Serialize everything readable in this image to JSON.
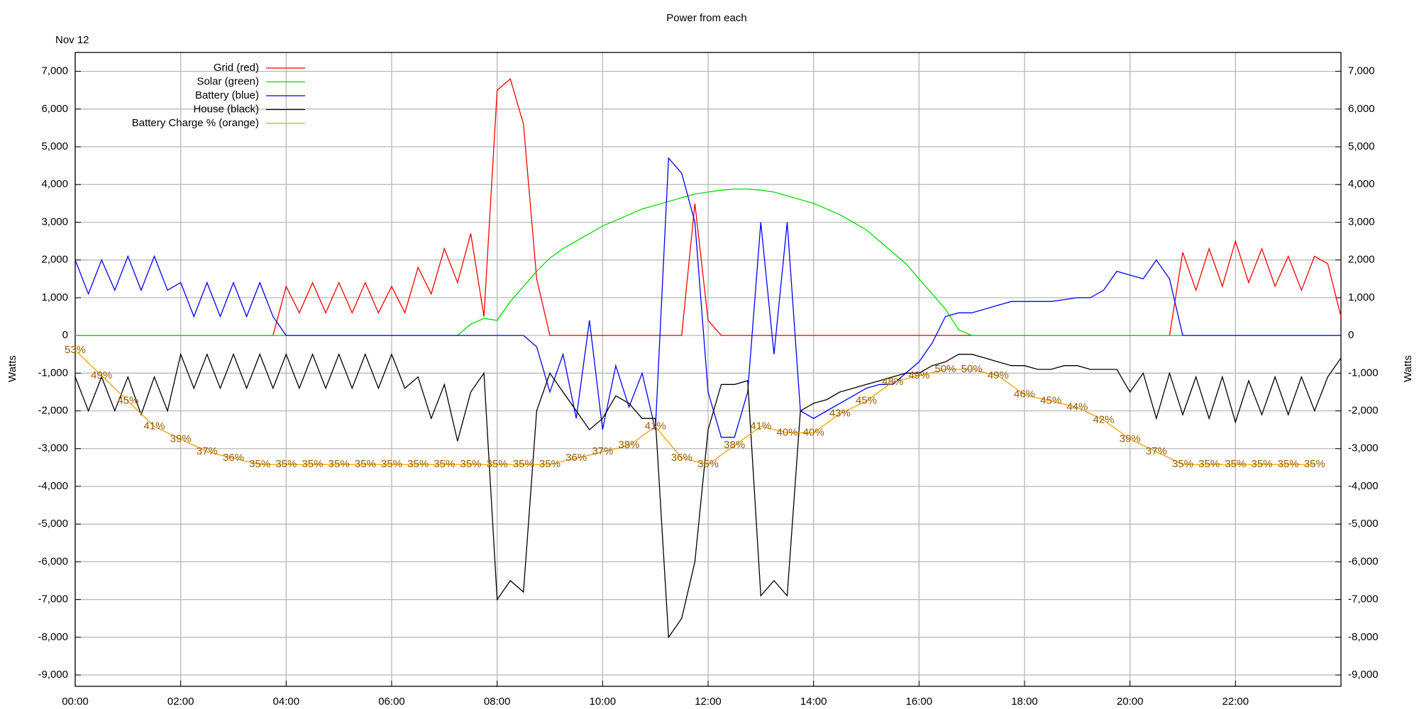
{
  "chart_data": {
    "type": "line",
    "title": "Power from each",
    "subtitle": "Nov 12",
    "ylabel": "Watts",
    "y2label": "Watts",
    "x": [
      0,
      0.25,
      0.5,
      0.75,
      1,
      1.25,
      1.5,
      1.75,
      2,
      2.25,
      2.5,
      2.75,
      3,
      3.25,
      3.5,
      3.75,
      4,
      4.25,
      4.5,
      4.75,
      5,
      5.25,
      5.5,
      5.75,
      6,
      6.25,
      6.5,
      6.75,
      7,
      7.25,
      7.5,
      7.75,
      8,
      8.25,
      8.5,
      8.75,
      9,
      9.25,
      9.5,
      9.75,
      10,
      10.25,
      10.5,
      10.75,
      11,
      11.25,
      11.5,
      11.75,
      12,
      12.25,
      12.5,
      12.75,
      13,
      13.25,
      13.5,
      13.75,
      14,
      14.25,
      14.5,
      14.75,
      15,
      15.25,
      15.5,
      15.75,
      16,
      16.25,
      16.5,
      16.75,
      17,
      17.25,
      17.5,
      17.75,
      18,
      18.25,
      18.5,
      18.75,
      19,
      19.25,
      19.5,
      19.75,
      20,
      20.25,
      20.5,
      20.75,
      21,
      21.25,
      21.5,
      21.75,
      22,
      22.25,
      22.5,
      22.75,
      23,
      23.25,
      23.5,
      23.75,
      24
    ],
    "xlim": [
      0,
      24
    ],
    "xticks": [
      {
        "value": 0,
        "label": "00:00"
      },
      {
        "value": 2,
        "label": "02:00"
      },
      {
        "value": 4,
        "label": "04:00"
      },
      {
        "value": 6,
        "label": "06:00"
      },
      {
        "value": 8,
        "label": "08:00"
      },
      {
        "value": 10,
        "label": "10:00"
      },
      {
        "value": 12,
        "label": "12:00"
      },
      {
        "value": 14,
        "label": "14:00"
      },
      {
        "value": 16,
        "label": "16:00"
      },
      {
        "value": 18,
        "label": "18:00"
      },
      {
        "value": 20,
        "label": "20:00"
      },
      {
        "value": 22,
        "label": "22:00"
      }
    ],
    "ylim": [
      -9300,
      7500
    ],
    "yticks": [
      {
        "value": 7000,
        "label": "7,000"
      },
      {
        "value": 6000,
        "label": "6,000"
      },
      {
        "value": 5000,
        "label": "5,000"
      },
      {
        "value": 4000,
        "label": "4,000"
      },
      {
        "value": 3000,
        "label": "3,000"
      },
      {
        "value": 2000,
        "label": "2,000"
      },
      {
        "value": 1000,
        "label": "1,000"
      },
      0,
      {
        "value": -1000,
        "label": "-1,000"
      },
      {
        "value": -2000,
        "label": "-2,000"
      },
      {
        "value": -3000,
        "label": "-3,000"
      },
      {
        "value": -4000,
        "label": "-4,000"
      },
      {
        "value": -5000,
        "label": "-5,000"
      },
      {
        "value": -6000,
        "label": "-6,000"
      },
      {
        "value": -7000,
        "label": "-7,000"
      },
      {
        "value": -8000,
        "label": "-8,000"
      },
      {
        "value": -9000,
        "label": "-9,000"
      }
    ],
    "y3lim": [
      0,
      100
    ],
    "grid": true,
    "legend": "upper left",
    "series": [
      {
        "name": "Grid (red)",
        "color": "#ff0000",
        "values": [
          0,
          0,
          0,
          0,
          0,
          0,
          0,
          0,
          0,
          0,
          0,
          0,
          0,
          0,
          0,
          0,
          1300,
          600,
          1400,
          600,
          1400,
          600,
          1400,
          600,
          1300,
          600,
          1800,
          1100,
          2300,
          1400,
          2700,
          500,
          6500,
          6800,
          5600,
          1500,
          0,
          0,
          0,
          0,
          0,
          0,
          0,
          0,
          0,
          0,
          0,
          3500,
          400,
          0,
          0,
          0,
          0,
          0,
          0,
          0,
          0,
          0,
          0,
          0,
          0,
          0,
          0,
          0,
          0,
          0,
          0,
          0,
          0,
          0,
          0,
          0,
          0,
          0,
          0,
          0,
          0,
          0,
          0,
          0,
          0,
          0,
          0,
          0,
          2200,
          1200,
          2300,
          1300,
          2500,
          1400,
          2300,
          1300,
          2100,
          1200,
          2100,
          1900,
          500
        ]
      },
      {
        "name": "Solar (green)",
        "color": "#00dd00",
        "values": [
          0,
          0,
          0,
          0,
          0,
          0,
          0,
          0,
          0,
          0,
          0,
          0,
          0,
          0,
          0,
          0,
          0,
          0,
          0,
          0,
          0,
          0,
          0,
          0,
          0,
          0,
          0,
          0,
          0,
          0,
          300,
          450,
          400,
          900,
          1300,
          1700,
          2050,
          2300,
          2500,
          2700,
          2900,
          3050,
          3200,
          3350,
          3450,
          3550,
          3650,
          3750,
          3800,
          3850,
          3880,
          3880,
          3850,
          3800,
          3700,
          3600,
          3500,
          3350,
          3200,
          3000,
          2800,
          2500,
          2200,
          1900,
          1500,
          1100,
          700,
          150,
          0,
          0,
          0,
          0,
          0,
          0,
          0,
          0,
          0,
          0,
          0,
          0,
          0,
          0,
          0,
          0,
          0,
          0,
          0,
          0,
          0,
          0,
          0,
          0,
          0,
          0,
          0,
          0,
          0
        ]
      },
      {
        "name": "Battery (blue)",
        "color": "#0000ff",
        "values": [
          2000,
          1100,
          2000,
          1200,
          2100,
          1200,
          2100,
          1200,
          1400,
          500,
          1400,
          500,
          1400,
          500,
          1400,
          500,
          0,
          0,
          0,
          0,
          0,
          0,
          0,
          0,
          0,
          0,
          0,
          0,
          0,
          0,
          0,
          0,
          0,
          0,
          0,
          -300,
          -1500,
          -500,
          -2200,
          400,
          -2500,
          -800,
          -1900,
          -1000,
          -2500,
          4700,
          4300,
          3000,
          -1500,
          -2700,
          -2700,
          -1500,
          3000,
          -500,
          3000,
          -2000,
          -2200,
          -2000,
          -1800,
          -1600,
          -1400,
          -1300,
          -1300,
          -1000,
          -700,
          -200,
          500,
          600,
          600,
          700,
          800,
          900,
          900,
          900,
          900,
          950,
          1000,
          1000,
          1200,
          1700,
          1600,
          1500,
          2000,
          1500,
          0,
          0,
          0,
          0,
          0,
          0,
          0,
          0,
          0,
          0,
          0,
          0,
          0
        ]
      },
      {
        "name": "House (black)",
        "color": "#000000",
        "values": [
          -1100,
          -2000,
          -1100,
          -2000,
          -1100,
          -2100,
          -1100,
          -2000,
          -500,
          -1400,
          -500,
          -1400,
          -500,
          -1400,
          -500,
          -1400,
          -500,
          -1400,
          -500,
          -1400,
          -500,
          -1400,
          -500,
          -1400,
          -500,
          -1400,
          -1100,
          -2200,
          -1300,
          -2800,
          -1500,
          -1000,
          -7000,
          -6500,
          -6800,
          -2000,
          -1000,
          -1500,
          -2000,
          -2500,
          -2200,
          -1600,
          -1800,
          -2200,
          -2200,
          -8000,
          -7500,
          -6000,
          -2500,
          -1300,
          -1300,
          -1200,
          -6900,
          -6500,
          -6900,
          -2000,
          -1800,
          -1700,
          -1500,
          -1400,
          -1300,
          -1200,
          -1100,
          -1000,
          -1000,
          -800,
          -700,
          -500,
          -500,
          -600,
          -700,
          -800,
          -800,
          -900,
          -900,
          -800,
          -800,
          -900,
          -900,
          -900,
          -1500,
          -1000,
          -2200,
          -1000,
          -2100,
          -1100,
          -2200,
          -1100,
          -2300,
          -1200,
          -2100,
          -1100,
          -2100,
          -1100,
          -2000,
          -1100,
          -600
        ]
      },
      {
        "name": "Battery Charge % (orange)",
        "color": "#f0a000",
        "label_color": "#9a5a00",
        "axis": "y3",
        "x": [
          0,
          0.5,
          1,
          1.5,
          2,
          2.5,
          3,
          3.5,
          4,
          4.5,
          5,
          5.5,
          6,
          6.5,
          7,
          7.5,
          8,
          8.5,
          9,
          9.5,
          10,
          10.5,
          11,
          11.5,
          12,
          12.5,
          13,
          13.5,
          14,
          14.5,
          15,
          15.5,
          16,
          16.5,
          17,
          17.5,
          18,
          18.5,
          19,
          19.5,
          20,
          20.5,
          21,
          21.5,
          22,
          22.5,
          23,
          23.5
        ],
        "values": [
          53,
          49,
          45,
          41,
          39,
          37,
          36,
          35,
          35,
          35,
          35,
          35,
          35,
          35,
          35,
          35,
          35,
          35,
          35,
          36,
          37,
          38,
          41,
          36,
          35,
          38,
          41,
          40,
          40,
          43,
          45,
          48,
          49,
          50,
          50,
          49,
          46,
          45,
          44,
          42,
          39,
          37,
          35,
          35,
          35,
          35,
          35,
          35
        ],
        "value_labels": [
          "53%",
          "49%",
          "45%",
          "41%",
          "39%",
          "37%",
          "36%",
          "35%",
          "35%",
          "35%",
          "35%",
          "35%",
          "35%",
          "35%",
          "35%",
          "35%",
          "35%",
          "35%",
          "35%",
          "36%",
          "37%",
          "38%",
          "41%",
          "36%",
          "35%",
          "38%",
          "41%",
          "40%",
          "40%",
          "43%",
          "45%",
          "48%",
          "49%",
          "50%",
          "50%",
          "49%",
          "46%",
          "45%",
          "44%",
          "42%",
          "39%",
          "37%",
          "35%",
          "35%",
          "35%",
          "35%",
          "35%",
          "35%"
        ]
      }
    ]
  }
}
